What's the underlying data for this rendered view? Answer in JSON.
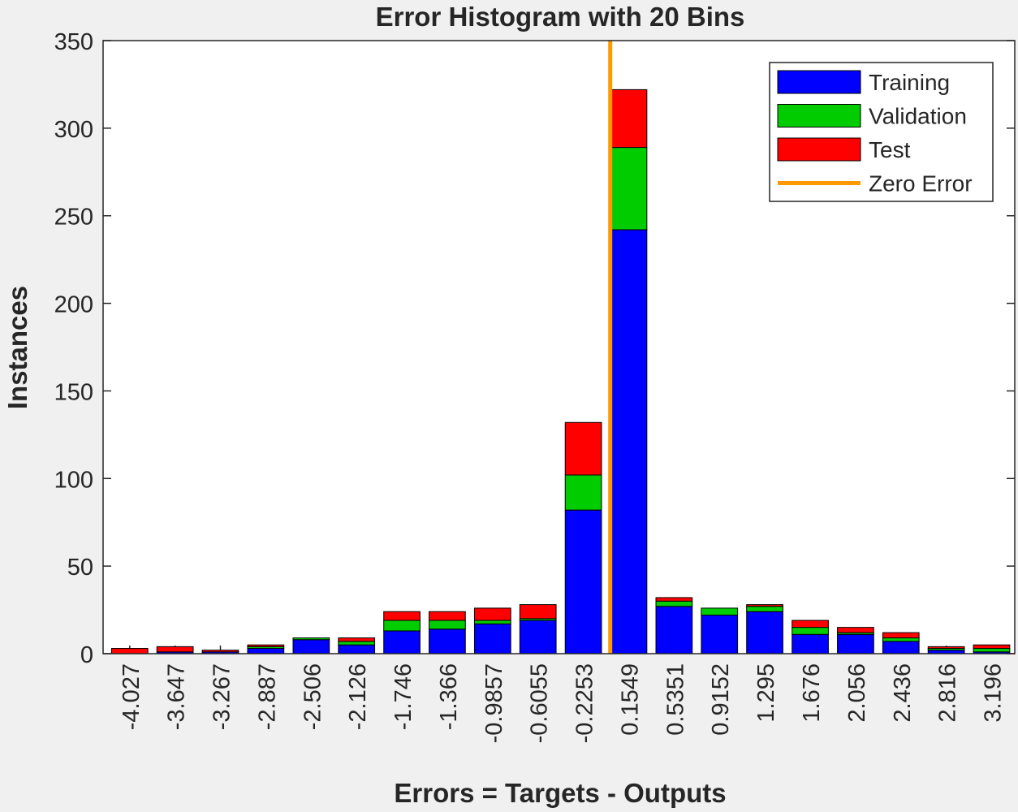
{
  "chart_data": {
    "type": "bar",
    "stacked": true,
    "title": "Error Histogram with 20 Bins",
    "xlabel": "Errors = Targets - Outputs",
    "ylabel": "Instances",
    "x": [
      -4.027,
      -3.647,
      -3.267,
      -2.887,
      -2.506,
      -2.126,
      -1.746,
      -1.366,
      -0.9857,
      -0.6055,
      -0.2253,
      0.1549,
      0.5351,
      0.9152,
      1.295,
      1.676,
      2.056,
      2.436,
      2.816,
      3.196
    ],
    "xticks": [
      -4.027,
      -3.647,
      -3.267,
      -2.887,
      -2.506,
      -2.126,
      -1.746,
      -1.366,
      -0.9857,
      -0.6055,
      -0.2253,
      0.1549,
      0.5351,
      0.9152,
      1.295,
      1.676,
      2.056,
      2.436,
      2.816,
      3.196
    ],
    "xlim": [
      -4.25,
      3.39
    ],
    "ylim": [
      0,
      350
    ],
    "yticks": [
      0,
      50,
      100,
      150,
      200,
      250,
      300,
      350
    ],
    "series": [
      {
        "name": "Training",
        "color": "#0000ff",
        "values": [
          0,
          1,
          1,
          3,
          8,
          5,
          13,
          14,
          17,
          19,
          82,
          242,
          27,
          22,
          24,
          11,
          11,
          7,
          2,
          1
        ]
      },
      {
        "name": "Validation",
        "color": "#00cc00",
        "values": [
          0,
          0,
          0,
          1,
          1,
          2,
          6,
          5,
          2,
          1,
          20,
          47,
          3,
          4,
          3,
          4,
          1,
          2,
          1,
          2
        ]
      },
      {
        "name": "Test",
        "color": "#ff0000",
        "values": [
          3,
          3,
          1,
          1,
          0,
          2,
          5,
          5,
          7,
          8,
          30,
          33,
          2,
          0,
          1,
          4,
          3,
          3,
          1,
          2
        ]
      }
    ],
    "reference_line": {
      "name": "Zero Error",
      "color": "#ff9900",
      "x": 0
    },
    "legend": "upper right"
  }
}
